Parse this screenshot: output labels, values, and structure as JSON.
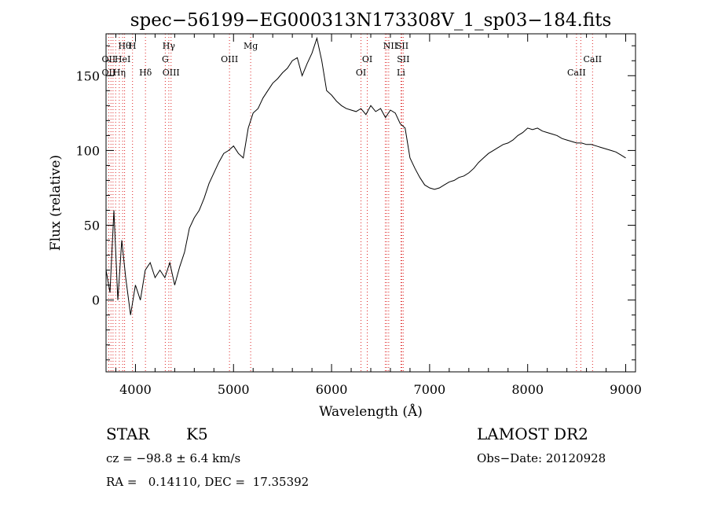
{
  "chart_data": {
    "type": "line",
    "title": "spec−56199−EG000313N173308V_1_sp03−184.fits",
    "xlabel": "Wavelength (Å)",
    "ylabel": "Flux (relative)",
    "xlim": [
      3700,
      9100
    ],
    "ylim": [
      -48,
      178
    ],
    "xticks": [
      4000,
      5000,
      6000,
      7000,
      8000,
      9000
    ],
    "yticks": [
      0,
      50,
      100,
      150
    ],
    "grid": false,
    "series": [
      {
        "x": [
          3700,
          3740,
          3780,
          3820,
          3860,
          3900,
          3950,
          4000,
          4050,
          4100,
          4150,
          4200,
          4250,
          4300,
          4350,
          4400,
          4450,
          4500,
          4550,
          4600,
          4650,
          4700,
          4750,
          4800,
          4850,
          4900,
          4950,
          5000,
          5050,
          5100,
          5150,
          5200,
          5250,
          5300,
          5350,
          5400,
          5450,
          5500,
          5550,
          5600,
          5650,
          5700,
          5750,
          5800,
          5850,
          5900,
          5950,
          6000,
          6050,
          6100,
          6150,
          6200,
          6250,
          6300,
          6350,
          6400,
          6450,
          6500,
          6550,
          6600,
          6650,
          6700,
          6750,
          6800,
          6850,
          6900,
          6950,
          7000,
          7050,
          7100,
          7150,
          7200,
          7250,
          7300,
          7350,
          7400,
          7450,
          7500,
          7550,
          7600,
          7650,
          7700,
          7750,
          7800,
          7850,
          7900,
          7950,
          8000,
          8050,
          8100,
          8150,
          8200,
          8250,
          8300,
          8350,
          8400,
          8450,
          8500,
          8550,
          8600,
          8650,
          8700,
          8750,
          8800,
          8850,
          8900,
          8950,
          9000
        ],
        "values": [
          20,
          5,
          60,
          0,
          40,
          15,
          -10,
          10,
          0,
          20,
          25,
          15,
          20,
          15,
          25,
          10,
          22,
          32,
          48,
          55,
          60,
          68,
          78,
          85,
          92,
          98,
          100,
          103,
          98,
          95,
          115,
          125,
          128,
          135,
          140,
          145,
          148,
          152,
          155,
          160,
          162,
          150,
          158,
          165,
          175,
          160,
          140,
          137,
          133,
          130,
          128,
          127,
          126,
          128,
          124,
          130,
          126,
          128,
          122,
          127,
          125,
          118,
          115,
          95,
          88,
          82,
          77,
          75,
          74,
          75,
          77,
          79,
          80,
          82,
          83,
          85,
          88,
          92,
          95,
          98,
          100,
          102,
          104,
          105,
          107,
          110,
          112,
          115,
          114,
          115,
          113,
          112,
          111,
          110,
          108,
          107,
          106,
          105,
          105,
          104,
          104,
          103,
          102,
          101,
          100,
          99,
          97,
          95
        ]
      }
    ],
    "line_labels_top": [
      {
        "x": 3889,
        "text": "Hθ"
      },
      {
        "x": 3970,
        "text": "H"
      },
      {
        "x": 4340,
        "text": "Hγ"
      },
      {
        "x": 5175,
        "text": "Mg"
      },
      {
        "x": 6600,
        "text": "NII"
      },
      {
        "x": 6720,
        "text": "SII"
      }
    ],
    "line_labels_mid": [
      {
        "x": 3727,
        "text": "OII"
      },
      {
        "x": 3869,
        "text": "HeI"
      },
      {
        "x": 4304,
        "text": "G"
      },
      {
        "x": 4959,
        "text": "OIII"
      },
      {
        "x": 6364,
        "text": "OI"
      },
      {
        "x": 6731,
        "text": "SII"
      },
      {
        "x": 8662,
        "text": "CaII"
      }
    ],
    "line_labels_low": [
      {
        "x": 3727,
        "text": "OII"
      },
      {
        "x": 3835,
        "text": "Hη"
      },
      {
        "x": 4102,
        "text": "Hδ"
      },
      {
        "x": 4363,
        "text": "OIII"
      },
      {
        "x": 6300,
        "text": "OI"
      },
      {
        "x": 6708,
        "text": "Li"
      },
      {
        "x": 8498,
        "text": "CaII"
      }
    ],
    "marker_lines": [
      3727,
      3750,
      3771,
      3798,
      3835,
      3869,
      3889,
      3970,
      4102,
      4304,
      4340,
      4363,
      4959,
      5175,
      6300,
      6364,
      6548,
      6563,
      6583,
      6708,
      6716,
      6731,
      8498,
      8542,
      8662
    ]
  },
  "info": {
    "object_class": "STAR",
    "subclass": "K5",
    "survey": "LAMOST DR2",
    "redshift": "cz = −98.8 ± 6.4 km/s",
    "obs_date": "Obs−Date: 20120928",
    "coords": "RA =   0.14110, DEC =  17.35392"
  }
}
